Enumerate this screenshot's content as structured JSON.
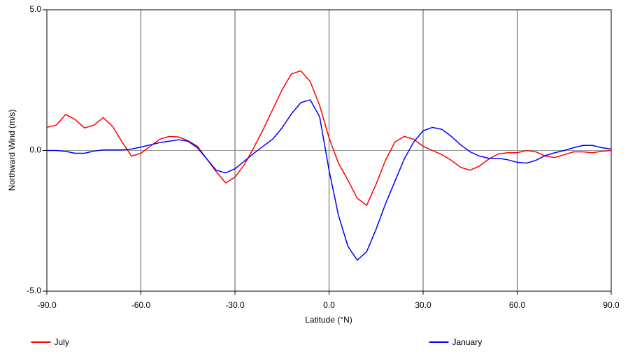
{
  "chart_data": {
    "type": "line",
    "x_label": "Latitude (°N)",
    "y_label": "Northward Wind (m/s)",
    "x": [
      -90,
      -87,
      -84,
      -81,
      -78,
      -75,
      -72,
      -69,
      -66,
      -63,
      -60,
      -57,
      -54,
      -51,
      -48,
      -45,
      -42,
      -39,
      -36,
      -33,
      -30,
      -27,
      -24,
      -21,
      -18,
      -15,
      -12,
      -9,
      -6,
      -3,
      0,
      3,
      6,
      9,
      12,
      15,
      18,
      21,
      24,
      27,
      30,
      33,
      36,
      39,
      42,
      45,
      48,
      51,
      54,
      57,
      60,
      63,
      66,
      69,
      72,
      75,
      78,
      81,
      84,
      87,
      90
    ],
    "series": [
      {
        "name": "July",
        "color": "#ff0000",
        "values": [
          0.82,
          0.9,
          1.28,
          1.1,
          0.8,
          0.9,
          1.17,
          0.85,
          0.3,
          -0.2,
          -0.1,
          0.15,
          0.4,
          0.5,
          0.48,
          0.35,
          0.15,
          -0.3,
          -0.75,
          -1.15,
          -0.95,
          -0.5,
          0.1,
          0.75,
          1.45,
          2.15,
          2.72,
          2.83,
          2.45,
          1.6,
          0.45,
          -0.45,
          -1.05,
          -1.7,
          -1.95,
          -1.2,
          -0.35,
          0.3,
          0.5,
          0.4,
          0.15,
          0.0,
          -0.15,
          -0.35,
          -0.6,
          -0.7,
          -0.55,
          -0.3,
          -0.12,
          -0.08,
          -0.08,
          0.0,
          -0.05,
          -0.2,
          -0.25,
          -0.15,
          -0.05,
          -0.05,
          -0.08,
          -0.03,
          0.0
        ]
      },
      {
        "name": "January",
        "color": "#0000ff",
        "values": [
          0.0,
          0.0,
          -0.03,
          -0.1,
          -0.1,
          -0.02,
          0.02,
          0.02,
          0.02,
          0.05,
          0.12,
          0.2,
          0.28,
          0.33,
          0.38,
          0.33,
          0.1,
          -0.3,
          -0.7,
          -0.8,
          -0.65,
          -0.38,
          -0.1,
          0.15,
          0.4,
          0.8,
          1.3,
          1.7,
          1.8,
          1.2,
          -0.7,
          -2.3,
          -3.4,
          -3.9,
          -3.6,
          -2.8,
          -1.9,
          -1.1,
          -0.3,
          0.3,
          0.7,
          0.82,
          0.75,
          0.5,
          0.2,
          -0.05,
          -0.2,
          -0.28,
          -0.28,
          -0.33,
          -0.42,
          -0.45,
          -0.35,
          -0.18,
          -0.08,
          0.0,
          0.1,
          0.18,
          0.18,
          0.1,
          0.05
        ]
      }
    ],
    "xlim": [
      -90,
      90
    ],
    "ylim": [
      -5,
      5
    ],
    "xticks": [
      {
        "value": -90,
        "label": "-90.0"
      },
      {
        "value": -60,
        "label": "-60.0"
      },
      {
        "value": -30,
        "label": "-30.0"
      },
      {
        "value": 0,
        "label": "0.0"
      },
      {
        "value": 30,
        "label": "30.0"
      },
      {
        "value": 60,
        "label": "60.0"
      },
      {
        "value": 90,
        "label": "90.0"
      }
    ],
    "yticks": [
      {
        "value": -5,
        "label": "-5.0"
      },
      {
        "value": 0,
        "label": "0.0"
      },
      {
        "value": 5,
        "label": "5.0"
      }
    ],
    "grid": true,
    "legend": "bottom"
  }
}
